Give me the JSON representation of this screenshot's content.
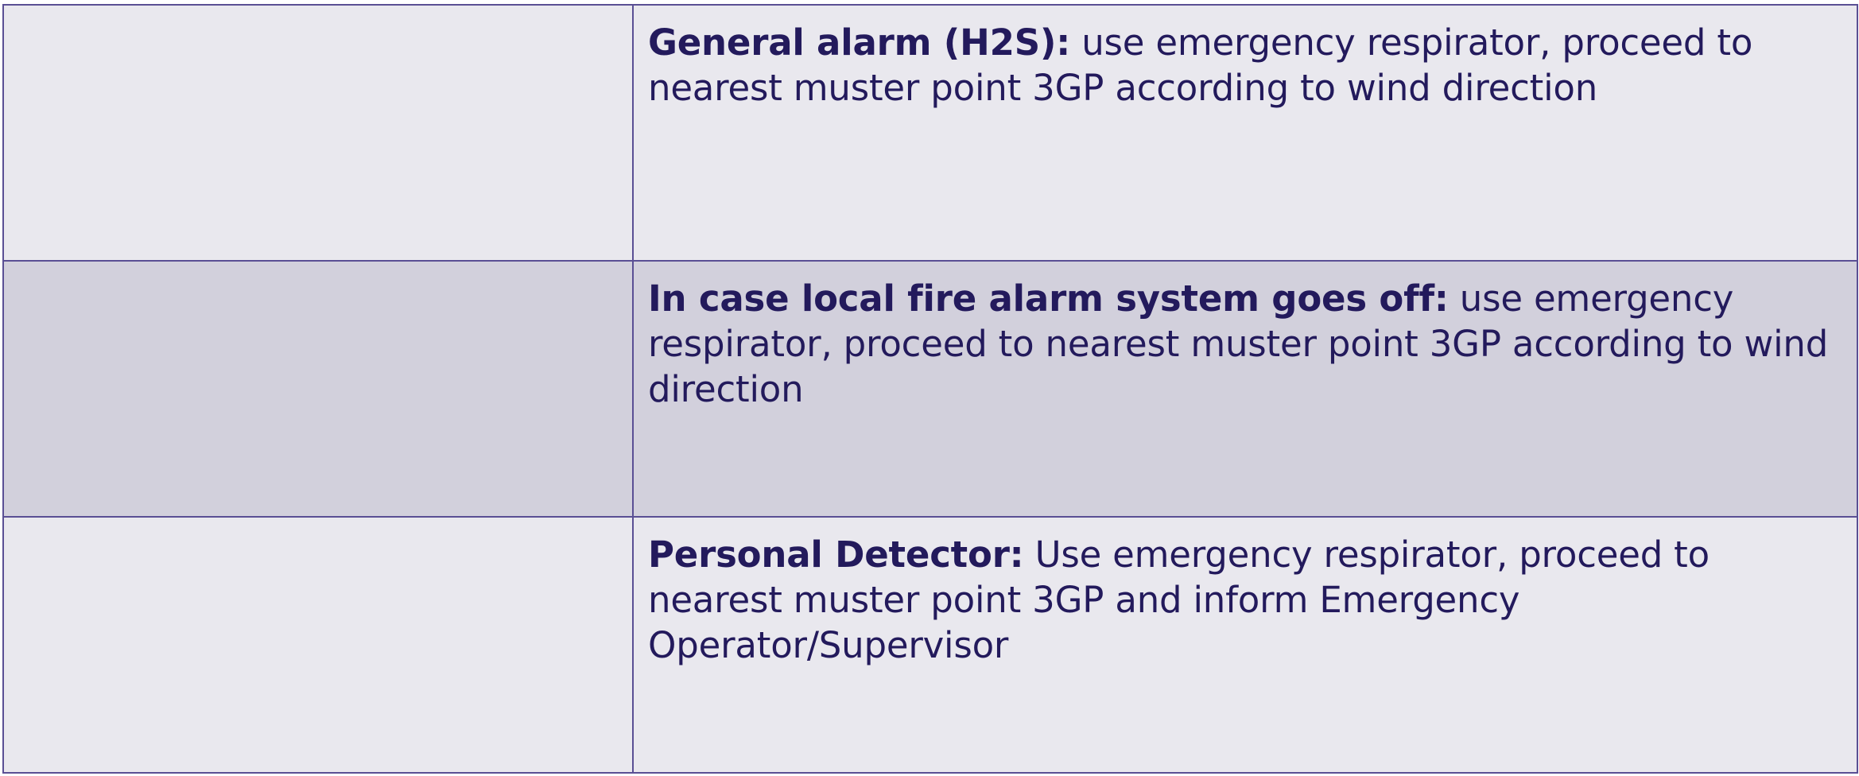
{
  "rows": [
    {
      "heading": "General alarm (H2S):",
      "text": " use emergency respirator, proceed to nearest muster point 3GP according to wind direction"
    },
    {
      "heading": "In case local fire alarm system goes off:",
      "text": " use emergency respirator, proceed to nearest muster point 3GP according to wind direction"
    },
    {
      "heading": "Personal Detector:",
      "text": " Use emergency respirator, proceed to nearest muster point 3GP and inform Emergency Operator/Supervisor"
    }
  ],
  "colors": {
    "border": "#5a4f94",
    "text": "#231a5c",
    "row_light": "#e9e8ee",
    "row_dark": "#d2d0dc"
  }
}
